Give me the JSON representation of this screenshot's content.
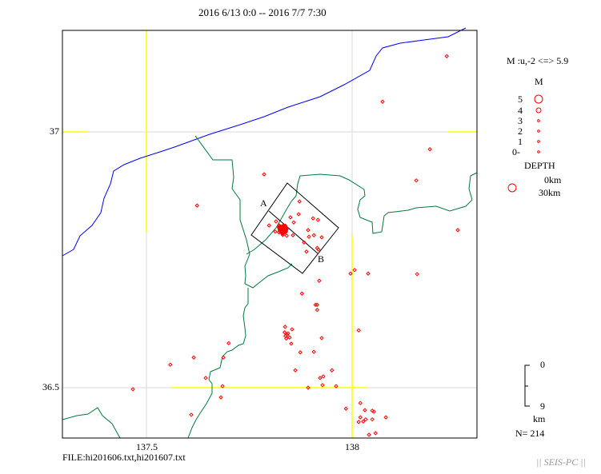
{
  "title": "2016 6/13 0:0 -- 2016 7/7 7:30",
  "axes": {
    "lat_labels": [
      "37",
      "36.5"
    ],
    "lon_labels": [
      "137.5",
      "138"
    ],
    "lon_range": [
      137.296,
      138.305
    ],
    "lat_range": [
      36.382,
      37.198
    ]
  },
  "file_label": "FILE:hi201606.txt,hi201607.txt",
  "legend": {
    "mag_range": "M :u,-2 <=> 5.9",
    "mag_title": "M",
    "mag_levels": [
      "5",
      "4",
      "3",
      "2",
      "1",
      "0-"
    ],
    "depth_title": "DEPTH",
    "depth_labels": [
      "0km",
      "30km"
    ],
    "scale_top": "0",
    "scale_bottom": "9",
    "scale_unit": "km",
    "count": "N= 214",
    "watermark": "|| SEIS-PC ||"
  },
  "section": {
    "label_a": "A",
    "label_b": "B"
  },
  "colors": {
    "event": "#ff0000",
    "coast": "#0000ff",
    "boundary": "#007a3d",
    "grid_major": "#ffff00",
    "grid_minor": "#d8d8d8"
  },
  "events": [
    [
      138.074,
      37.059
    ],
    [
      138.23,
      37.148
    ],
    [
      138.189,
      36.966
    ],
    [
      137.786,
      36.917
    ],
    [
      137.623,
      36.856
    ],
    [
      138.156,
      36.905
    ],
    [
      138.257,
      36.808
    ],
    [
      137.996,
      36.723
    ],
    [
      138.006,
      36.73
    ],
    [
      138.039,
      36.723
    ],
    [
      138.158,
      36.722
    ],
    [
      137.92,
      36.709
    ],
    [
      137.878,
      36.684
    ],
    [
      137.911,
      36.662
    ],
    [
      137.915,
      36.662
    ],
    [
      137.915,
      36.652
    ],
    [
      137.837,
      36.619
    ],
    [
      137.854,
      36.614
    ],
    [
      137.926,
      36.597
    ],
    [
      137.852,
      36.586
    ],
    [
      137.874,
      36.569
    ],
    [
      137.907,
      36.57
    ],
    [
      137.862,
      36.534
    ],
    [
      137.951,
      36.534
    ],
    [
      137.922,
      36.519
    ],
    [
      137.93,
      36.522
    ],
    [
      137.961,
      36.503
    ],
    [
      137.928,
      36.505
    ],
    [
      137.893,
      36.5
    ],
    [
      137.685,
      36.503
    ],
    [
      137.7,
      36.587
    ],
    [
      137.615,
      36.559
    ],
    [
      137.558,
      36.545
    ],
    [
      137.644,
      36.519
    ],
    [
      137.687,
      36.559
    ],
    [
      137.681,
      36.481
    ],
    [
      137.609,
      36.447
    ],
    [
      137.985,
      36.459
    ],
    [
      138.016,
      36.612
    ],
    [
      138.02,
      36.47
    ],
    [
      138.031,
      36.456
    ],
    [
      138.049,
      36.455
    ],
    [
      138.053,
      36.453
    ],
    [
      138.02,
      36.442
    ],
    [
      138.016,
      36.433
    ],
    [
      138.027,
      36.434
    ],
    [
      138.033,
      36.438
    ],
    [
      138.049,
      36.438
    ],
    [
      138.082,
      36.442
    ],
    [
      138.041,
      36.408
    ],
    [
      138.057,
      36.411
    ],
    [
      137.467,
      36.497
    ],
    [
      137.842,
      36.603
    ],
    [
      137.836,
      36.608
    ],
    [
      137.848,
      36.598
    ],
    [
      137.84,
      36.596
    ],
    [
      137.844,
      36.606
    ],
    [
      137.838,
      36.601
    ],
    [
      137.872,
      36.864
    ],
    [
      137.87,
      36.839
    ],
    [
      137.85,
      36.833
    ],
    [
      137.905,
      36.831
    ],
    [
      137.917,
      36.828
    ],
    [
      137.893,
      36.808
    ],
    [
      137.907,
      36.798
    ],
    [
      137.926,
      36.794
    ],
    [
      137.895,
      36.795
    ],
    [
      137.883,
      36.784
    ],
    [
      137.889,
      36.766
    ],
    [
      137.915,
      36.773
    ],
    [
      137.918,
      36.77
    ],
    [
      137.813,
      36.805
    ],
    [
      137.798,
      36.817
    ],
    [
      137.815,
      36.825
    ],
    [
      137.841,
      36.797
    ],
    [
      137.856,
      36.798
    ],
    [
      137.858,
      36.823
    ]
  ],
  "cluster": {
    "center": [
      137.831,
      36.809
    ],
    "count": 130,
    "spread_deg": 0.007
  }
}
